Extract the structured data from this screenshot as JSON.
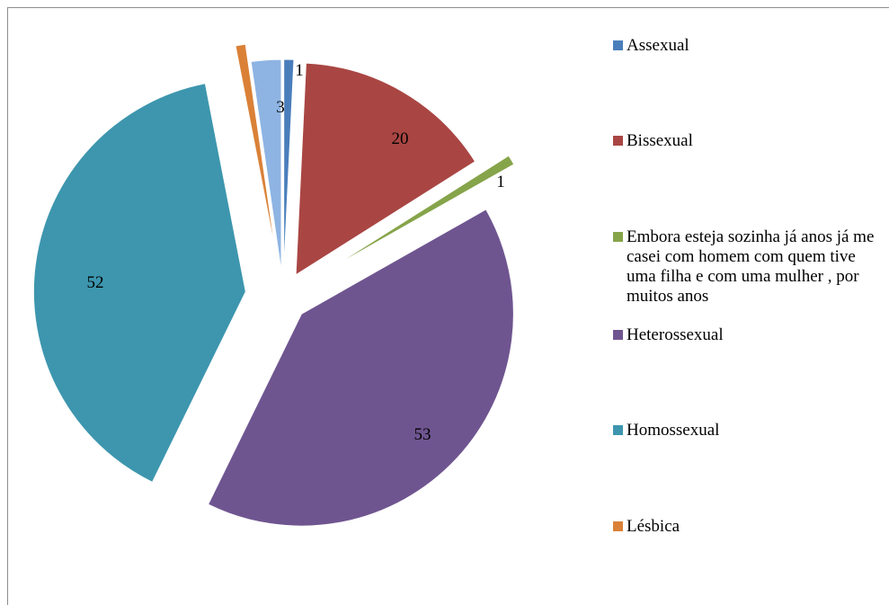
{
  "chart_data": {
    "type": "pie",
    "title": "",
    "exploded": true,
    "legend_position": "right",
    "slices": [
      {
        "label": "Assexual",
        "value": 1,
        "color": "#4a7ebb"
      },
      {
        "label": "Bissexual",
        "value": 20,
        "color": "#a94643"
      },
      {
        "label": "Embora esteja sozinha já anos já me casei com homem com quem tive uma filha e com uma mulher , por muitos anos",
        "value": 1,
        "color": "#86a44a"
      },
      {
        "label": "Heterossexual",
        "value": 53,
        "color": "#6f5590"
      },
      {
        "label": "Homossexual",
        "value": 52,
        "color": "#3d96ae"
      },
      {
        "label": "Lésbica",
        "value": 1,
        "color": "#da8137"
      },
      {
        "label": "",
        "value": 3,
        "color": "#8eb4e3"
      }
    ]
  },
  "legend": {
    "items": [
      {
        "label": "Assexual",
        "color": "#4a7ebb"
      },
      {
        "label": "Bissexual",
        "color": "#a94643"
      },
      {
        "label": "Embora esteja sozinha já anos já me casei com homem com quem tive uma filha e com uma mulher , por muitos anos",
        "color": "#86a44a"
      },
      {
        "label": "Heterossexual",
        "color": "#6f5590"
      },
      {
        "label": "Homossexual",
        "color": "#3d96ae"
      },
      {
        "label": "Lésbica",
        "color": "#da8137"
      }
    ]
  }
}
